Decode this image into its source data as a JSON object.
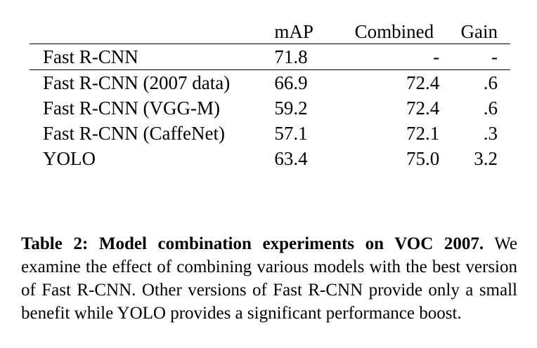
{
  "table": {
    "headers": {
      "model": "",
      "map": "mAP",
      "combined": "Combined",
      "gain": "Gain"
    },
    "base": {
      "model": "Fast R-CNN",
      "map": "71.8",
      "combined": "-",
      "gain": "-"
    },
    "rows": [
      {
        "model": "Fast R-CNN (2007 data)",
        "map": "66.9",
        "combined": "72.4",
        "gain": ".6"
      },
      {
        "model": "Fast R-CNN (VGG-M)",
        "map": "59.2",
        "combined": "72.4",
        "gain": ".6"
      },
      {
        "model": "Fast R-CNN (CaffeNet)",
        "map": "57.1",
        "combined": "72.1",
        "gain": ".3"
      },
      {
        "model": "YOLO",
        "map": "63.4",
        "combined": "75.0",
        "gain": "3.2"
      }
    ],
    "bold_cells": [
      "rows.0.map",
      "rows.3.combined",
      "rows.3.gain"
    ]
  },
  "caption": {
    "label": "Table 2:",
    "title": "Model combination experiments on VOC 2007.",
    "body": "We examine the effect of combining various models with the best version of Fast R-CNN. Other versions of Fast R-CNN provide only a small benefit while YOLO provides a significant performance boost."
  }
}
